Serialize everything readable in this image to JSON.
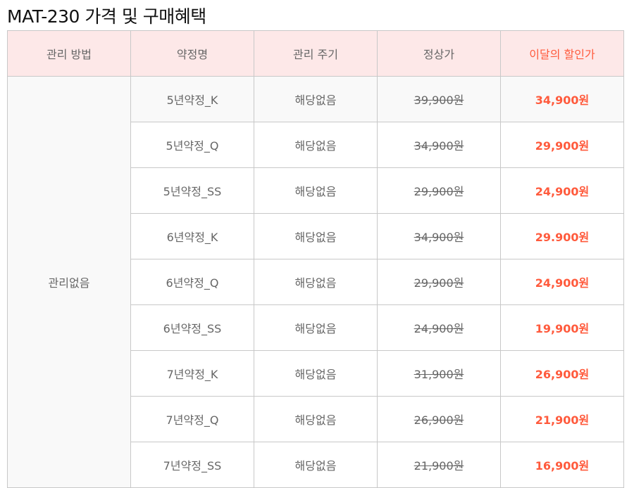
{
  "title": "MAT-230 가격 및 구매혜택",
  "headers": [
    "관리 방법",
    "약정명",
    "관리 주기",
    "정상가",
    "이달의 할인가"
  ],
  "management_method": "관리없음",
  "accent_color": "#ff5a3c",
  "rows": [
    {
      "plan": "5년약정_K",
      "cycle": "해당없음",
      "regular": "39,900원",
      "sale": "34,900원"
    },
    {
      "plan": "5년약정_Q",
      "cycle": "해당없음",
      "regular": "34,900원",
      "sale": "29,900원"
    },
    {
      "plan": "5년약정_SS",
      "cycle": "해당없음",
      "regular": "29,900원",
      "sale": "24,900원"
    },
    {
      "plan": "6년약정_K",
      "cycle": "해당없음",
      "regular": "34,900원",
      "sale": "29.900원"
    },
    {
      "plan": "6년약정_Q",
      "cycle": "해당없음",
      "regular": "29,900원",
      "sale": "24,900원"
    },
    {
      "plan": "6년약정_SS",
      "cycle": "해당없음",
      "regular": "24,900원",
      "sale": "19,900원"
    },
    {
      "plan": "7년약정_K",
      "cycle": "해당없음",
      "regular": "31,900원",
      "sale": "26,900원"
    },
    {
      "plan": "7년약정_Q",
      "cycle": "해당없음",
      "regular": "26,900원",
      "sale": "21,900원"
    },
    {
      "plan": "7년약정_SS",
      "cycle": "해당없음",
      "regular": "21,900원",
      "sale": "16,900원"
    }
  ]
}
